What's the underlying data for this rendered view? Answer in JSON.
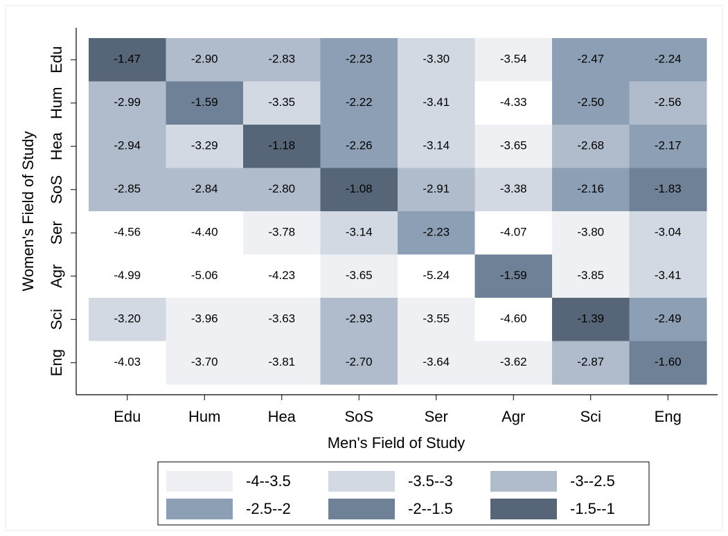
{
  "chart_data": {
    "type": "heatmap",
    "x_label": "Men's Field of Study",
    "y_label": "Women's Field of Study",
    "x_categories": [
      "Edu",
      "Hum",
      "Hea",
      "SoS",
      "Ser",
      "Agr",
      "Sci",
      "Eng"
    ],
    "y_categories": [
      "Edu",
      "Hum",
      "Hea",
      "SoS",
      "Ser",
      "Agr",
      "Sci",
      "Eng"
    ],
    "values": [
      [
        -1.47,
        -2.9,
        -2.83,
        -2.23,
        -3.3,
        -3.54,
        -2.47,
        -2.24
      ],
      [
        -2.99,
        -1.59,
        -3.35,
        -2.22,
        -3.41,
        -4.33,
        -2.5,
        -2.56
      ],
      [
        -2.94,
        -3.29,
        -1.18,
        -2.26,
        -3.14,
        -3.65,
        -2.68,
        -2.17
      ],
      [
        -2.85,
        -2.84,
        -2.8,
        -1.08,
        -2.91,
        -3.38,
        -2.16,
        -1.83
      ],
      [
        -4.56,
        -4.4,
        -3.78,
        -3.14,
        -2.23,
        -4.07,
        -3.8,
        -3.04
      ],
      [
        -4.99,
        -5.06,
        -4.23,
        -3.65,
        -5.24,
        -1.59,
        -3.85,
        -3.41
      ],
      [
        -3.2,
        -3.96,
        -3.63,
        -2.93,
        -3.55,
        -4.6,
        -1.39,
        -2.49
      ],
      [
        -4.03,
        -3.7,
        -3.81,
        -2.7,
        -3.64,
        -3.62,
        -2.87,
        -1.6
      ]
    ],
    "value_labels": [
      [
        "-1.47",
        "-2.90",
        "-2.83",
        "-2.23",
        "-3.30",
        "-3.54",
        "-2.47",
        "-2.24"
      ],
      [
        "-2.99",
        "-1.59",
        "-3.35",
        "-2.22",
        "-3.41",
        "-4.33",
        "-2.50",
        "-2.56"
      ],
      [
        "-2.94",
        "-3.29",
        "-1.18",
        "-2.26",
        "-3.14",
        "-3.65",
        "-2.68",
        "-2.17"
      ],
      [
        "-2.85",
        "-2.84",
        "-2.80",
        "-1.08",
        "-2.91",
        "-3.38",
        "-2.16",
        "-1.83"
      ],
      [
        "-4.56",
        "-4.40",
        "-3.78",
        "-3.14",
        "-2.23",
        "-4.07",
        "-3.80",
        "-3.04"
      ],
      [
        "-4.99",
        "-5.06",
        "-4.23",
        "-3.65",
        "-5.24",
        "-1.59",
        "-3.85",
        "-3.41"
      ],
      [
        "-3.20",
        "-3.96",
        "-3.63",
        "-2.93",
        "-3.55",
        "-4.60",
        "-1.39",
        "-2.49"
      ],
      [
        "-4.03",
        "-3.70",
        "-3.81",
        "-2.70",
        "-3.64",
        "-3.62",
        "-2.87",
        "-1.60"
      ]
    ],
    "legend": [
      {
        "label": "-4--3.5",
        "min": -4,
        "max": -3.5,
        "color": "#eef0f3"
      },
      {
        "label": "-3.5--3",
        "min": -3.5,
        "max": -3,
        "color": "#d3d9e2"
      },
      {
        "label": "-3--2.5",
        "min": -3,
        "max": -2.5,
        "color": "#b0bccb"
      },
      {
        "label": "-2.5--2",
        "min": -2.5,
        "max": -2,
        "color": "#8d9fb4"
      },
      {
        "label": "-2--1.5",
        "min": -2,
        "max": -1.5,
        "color": "#6e8196"
      },
      {
        "label": "-1.5--1",
        "min": -1.5,
        "max": -1,
        "color": "#566678"
      }
    ]
  }
}
